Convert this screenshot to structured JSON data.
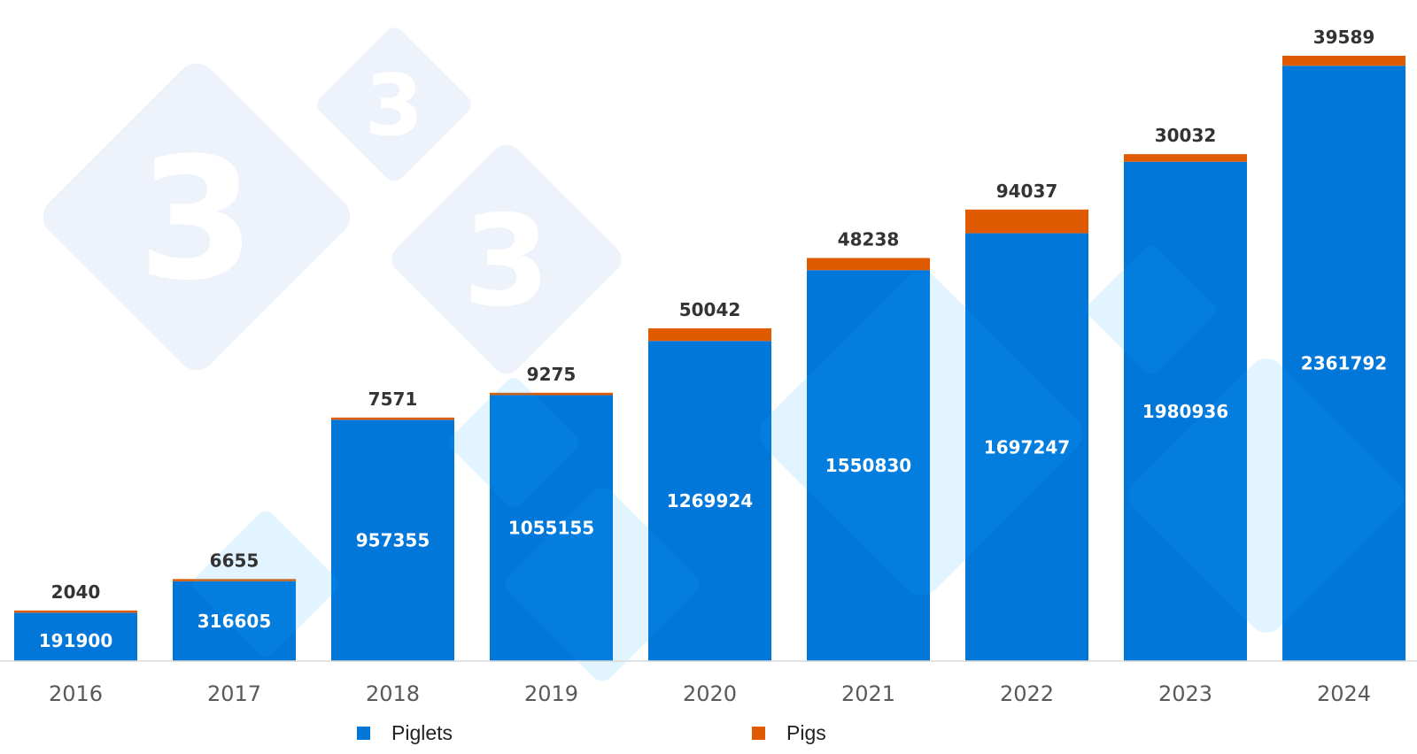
{
  "colors": {
    "piglets": "#0077d9",
    "pigs": "#e05a00",
    "watermark": "#eef2fa"
  },
  "watermark": {
    "icon": "three-diamond-logo",
    "glyph": "3"
  },
  "chart_data": {
    "type": "bar",
    "stacked": true,
    "categories": [
      "2016",
      "2017",
      "2018",
      "2019",
      "2020",
      "2021",
      "2022",
      "2023",
      "2024"
    ],
    "series": [
      {
        "name": "Piglets",
        "values": [
          191900,
          316605,
          957355,
          1055155,
          1269924,
          1550830,
          1697247,
          1980936,
          2361792
        ]
      },
      {
        "name": "Pigs",
        "values": [
          2040,
          6655,
          7571,
          9275,
          50042,
          48238,
          94037,
          30032,
          39589
        ]
      }
    ],
    "title": "",
    "xlabel": "",
    "ylabel": "",
    "ylim": [
      0,
      2401381
    ],
    "grid": false,
    "legend": "bottom"
  }
}
